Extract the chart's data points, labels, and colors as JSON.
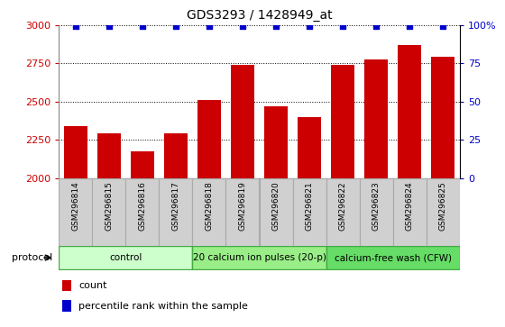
{
  "title": "GDS3293 / 1428949_at",
  "samples": [
    "GSM296814",
    "GSM296815",
    "GSM296816",
    "GSM296817",
    "GSM296818",
    "GSM296819",
    "GSM296820",
    "GSM296821",
    "GSM296822",
    "GSM296823",
    "GSM296824",
    "GSM296825"
  ],
  "counts": [
    2340,
    2290,
    2175,
    2290,
    2510,
    2740,
    2465,
    2400,
    2740,
    2775,
    2870,
    2790
  ],
  "percentile_ranks": [
    99,
    99,
    99,
    99,
    99,
    99,
    99,
    99,
    99,
    99,
    99,
    99
  ],
  "bar_color": "#cc0000",
  "dot_color": "#0000cc",
  "ylim_left": [
    2000,
    3000
  ],
  "ylim_right": [
    0,
    100
  ],
  "yticks_left": [
    2000,
    2250,
    2500,
    2750,
    3000
  ],
  "yticks_right": [
    0,
    25,
    50,
    75,
    100
  ],
  "xlabel_color": "#cc0000",
  "ylabel_right_color": "#0000cc",
  "group_sizes": [
    4,
    4,
    4
  ],
  "group_labels": [
    "control",
    "20 calcium ion pulses (20-p)",
    "calcium-free wash (CFW)"
  ],
  "group_colors": [
    "#ccffcc",
    "#99ee88",
    "#66dd66"
  ],
  "cell_color": "#d0d0d0",
  "cell_edge_color": "#aaaaaa"
}
